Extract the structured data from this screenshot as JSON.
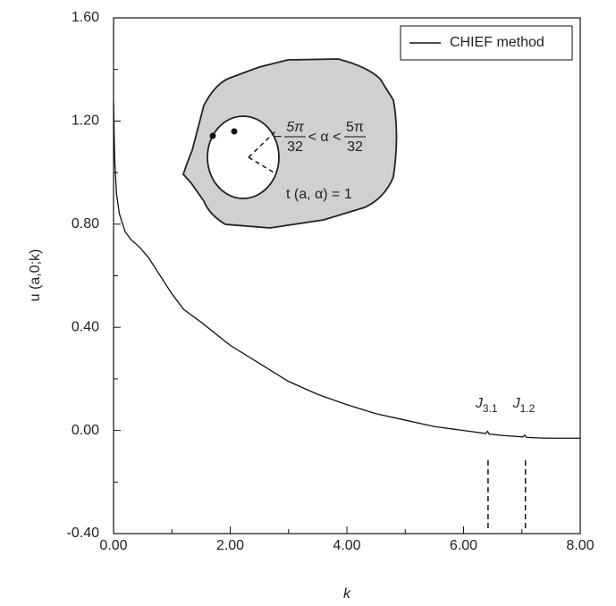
{
  "chart_data": {
    "type": "line",
    "x_label": "k",
    "y_label": "u (a,0;k)",
    "xlim": [
      0,
      8
    ],
    "ylim": [
      -0.4,
      1.6
    ],
    "xticks": [
      {
        "value": 0,
        "label": "0.00"
      },
      {
        "value": 2,
        "label": "2.00"
      },
      {
        "value": 4,
        "label": "4.00"
      },
      {
        "value": 6,
        "label": "6.00"
      },
      {
        "value": 8,
        "label": "8.00"
      }
    ],
    "yticks": [
      {
        "value": -0.4,
        "label": "-0.40"
      },
      {
        "value": 0,
        "label": "0.00"
      },
      {
        "value": 0.4,
        "label": "0.40"
      },
      {
        "value": 0.8,
        "label": "0.80"
      },
      {
        "value": 1.2,
        "label": "1.20"
      },
      {
        "value": 1.6,
        "label": "1.60"
      }
    ],
    "x_minor_ticks": [
      1,
      3,
      5,
      7
    ],
    "y_minor_ticks": [
      -0.2,
      0.2,
      0.6,
      1.0,
      1.4
    ],
    "legend_position": "upper right",
    "series": [
      {
        "name": "CHIEF method",
        "color": "#111111",
        "x": [
          0,
          0.02,
          0.05,
          0.1,
          0.2,
          0.3,
          0.45,
          0.6,
          0.8,
          1.0,
          1.2,
          1.5,
          2.0,
          2.5,
          3.0,
          3.5,
          4.0,
          4.5,
          5.0,
          5.5,
          6.0,
          6.38,
          6.41,
          6.44,
          6.7,
          7.02,
          7.05,
          7.08,
          7.4,
          8.0
        ],
        "values": [
          1.27,
          1.05,
          0.92,
          0.84,
          0.77,
          0.74,
          0.71,
          0.67,
          0.6,
          0.53,
          0.47,
          0.42,
          0.33,
          0.26,
          0.19,
          0.14,
          0.1,
          0.065,
          0.04,
          0.015,
          0.0,
          -0.012,
          -0.003,
          -0.014,
          -0.02,
          -0.025,
          -0.018,
          -0.027,
          -0.03,
          -0.03
        ]
      }
    ],
    "annotations": [
      {
        "text": "J",
        "sub": "3.1",
        "x": 6.42
      },
      {
        "text": "J",
        "sub": "1.2",
        "x": 7.06
      }
    ],
    "inset": {
      "minus": "−",
      "num1": "5π",
      "den1": "32",
      "middle": "< α <",
      "num2": "5π",
      "den2": "32",
      "condition": "t (a, α) = 1"
    }
  }
}
